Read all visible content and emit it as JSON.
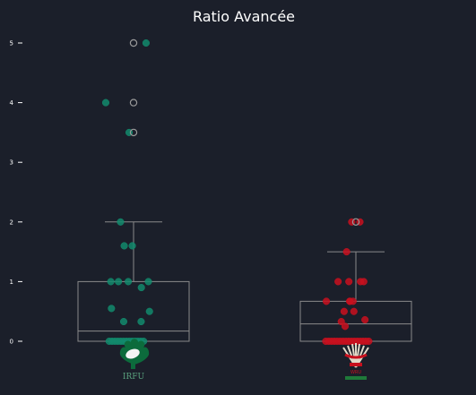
{
  "chart_data": {
    "type": "box",
    "title": "Ratio Avancée",
    "xlabel": "",
    "ylabel": "",
    "ylim": [
      -0.7,
      5.35
    ],
    "yticks": [
      0,
      1,
      2,
      3,
      4,
      5
    ],
    "grid": false,
    "legend": "none",
    "series": [
      {
        "logo_label": "IRFU",
        "color": "#128a6c",
        "box": {
          "q1": 0.0,
          "median": 0.17,
          "q3": 1.0,
          "whisker_low": 0.0,
          "whisker_high": 2.0
        },
        "outliers": [
          3.5,
          4.0,
          5.0
        ],
        "points": [
          5.0,
          4.0,
          3.5,
          2.0,
          1.6,
          1.6,
          1.0,
          1.0,
          1.0,
          1.0,
          0.9,
          0.55,
          0.5,
          0.33,
          0.33,
          0,
          0,
          0,
          0,
          0,
          0,
          0,
          0,
          0,
          0,
          0,
          0,
          0
        ]
      },
      {
        "logo_label": "WRU",
        "color": "#c8101e",
        "box": {
          "q1": 0.0,
          "median": 0.29,
          "q3": 0.67,
          "whisker_low": 0.0,
          "whisker_high": 1.5
        },
        "outliers": [
          2.0
        ],
        "points": [
          2.0,
          2.0,
          1.5,
          1.0,
          1.0,
          1.0,
          1.0,
          0.67,
          0.67,
          0.67,
          0.67,
          0.5,
          0.5,
          0.36,
          0.33,
          0.25,
          0,
          0,
          0,
          0,
          0,
          0,
          0,
          0,
          0,
          0,
          0,
          0,
          0,
          0,
          0,
          0
        ]
      }
    ]
  },
  "colors": {
    "background": "#1b1f2a",
    "box_line": "#8a8a8a",
    "outlier_ring": "#9a9a9a"
  }
}
